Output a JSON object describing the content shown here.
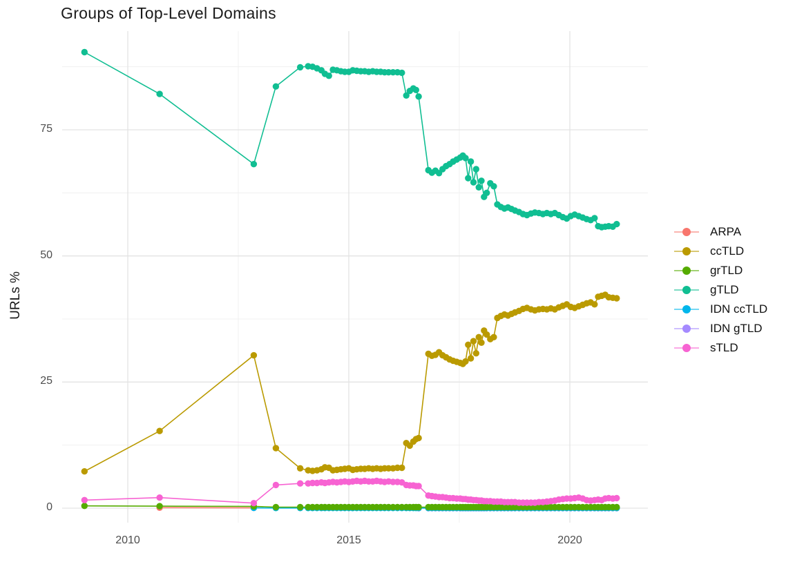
{
  "title": "Groups of Top-Level Domains",
  "colors": {
    "background": "#FFFFFF",
    "grid_major": "#E3E3E3",
    "grid_minor": "#F0F0F0",
    "axis_text": "#4D4D4D",
    "title_text": "#1A1A1A"
  },
  "chart_data": {
    "type": "line",
    "title": "Groups of Top-Level Domains",
    "xlabel": "",
    "ylabel": "URLs %",
    "grid": "on",
    "legend_position": "right",
    "x_ticks": [
      2010,
      2015,
      2020
    ],
    "x_minor": [
      2012.5,
      2017.5
    ],
    "y_ticks": [
      0,
      25,
      50,
      75
    ],
    "y_minor": [
      12.5,
      37.5,
      62.5,
      87.5
    ],
    "x_range": [
      2008.8,
      2021.8
    ],
    "y_range": [
      -3,
      94.5
    ],
    "x": [
      2009.02,
      2010.72,
      2012.85,
      2013.35,
      2013.9,
      2014.08,
      2014.18,
      2014.28,
      2014.38,
      2014.46,
      2014.55,
      2014.64,
      2014.73,
      2014.82,
      2014.91,
      2015.0,
      2015.09,
      2015.18,
      2015.27,
      2015.36,
      2015.45,
      2015.54,
      2015.63,
      2015.72,
      2015.81,
      2015.9,
      2016.0,
      2016.1,
      2016.2,
      2016.3,
      2016.38,
      2016.46,
      2016.52,
      2016.58,
      2016.8,
      2016.88,
      2016.96,
      2017.04,
      2017.12,
      2017.2,
      2017.28,
      2017.36,
      2017.44,
      2017.52,
      2017.58,
      2017.64,
      2017.7,
      2017.76,
      2017.82,
      2017.88,
      2017.94,
      2018.0,
      2018.06,
      2018.12,
      2018.2,
      2018.28,
      2018.36,
      2018.44,
      2018.52,
      2018.6,
      2018.68,
      2018.76,
      2018.85,
      2018.94,
      2019.03,
      2019.12,
      2019.21,
      2019.3,
      2019.39,
      2019.48,
      2019.57,
      2019.66,
      2019.75,
      2019.84,
      2019.93,
      2020.02,
      2020.11,
      2020.2,
      2020.29,
      2020.38,
      2020.47,
      2020.56,
      2020.64,
      2020.72,
      2020.8,
      2020.88,
      2020.97,
      2021.06
    ],
    "series": [
      {
        "name": "ARPA",
        "color": "#F8766D",
        "x": [
          2010.72,
          2012.85
        ],
        "values": [
          0.1,
          0.05
        ]
      },
      {
        "name": "ccTLD",
        "color": "#BA9A00",
        "start_index": 0,
        "values": [
          7.3,
          15.3,
          30.3,
          11.9,
          7.9,
          7.5,
          7.4,
          7.5,
          7.7,
          8.1,
          8.0,
          7.5,
          7.6,
          7.7,
          7.8,
          7.9,
          7.6,
          7.7,
          7.8,
          7.8,
          7.9,
          7.8,
          7.9,
          7.8,
          7.9,
          7.9,
          7.9,
          8.0,
          8.0,
          12.9,
          12.4,
          13.2,
          13.7,
          13.9,
          30.6,
          30.2,
          30.4,
          30.9,
          30.3,
          29.9,
          29.5,
          29.2,
          29.0,
          28.8,
          28.6,
          29.1,
          32.4,
          29.7,
          33.1,
          30.7,
          33.9,
          32.8,
          35.2,
          34.4,
          33.5,
          33.9,
          37.7,
          38.1,
          38.4,
          38.2,
          38.5,
          38.8,
          39.1,
          39.5,
          39.7,
          39.4,
          39.2,
          39.4,
          39.5,
          39.4,
          39.6,
          39.4,
          39.8,
          40.1,
          40.4,
          39.9,
          39.7,
          40.0,
          40.3,
          40.6,
          40.8,
          40.4,
          41.9,
          42.1,
          42.3,
          41.8,
          41.7,
          41.6
        ]
      },
      {
        "name": "grTLD",
        "color": "#55AB00",
        "start_index": 0,
        "values_head": [
          0.45,
          0.4,
          0.35,
          0.2,
          0.2
        ],
        "fill_value": 0.2
      },
      {
        "name": "gTLD",
        "color": "#10BE92",
        "start_index": 0,
        "values": [
          90.4,
          82.1,
          68.2,
          83.6,
          87.4,
          87.6,
          87.5,
          87.2,
          86.8,
          86.1,
          85.7,
          86.9,
          86.8,
          86.6,
          86.5,
          86.5,
          86.8,
          86.7,
          86.6,
          86.6,
          86.5,
          86.6,
          86.5,
          86.5,
          86.4,
          86.4,
          86.4,
          86.4,
          86.3,
          81.8,
          82.7,
          83.2,
          82.9,
          81.6,
          67.0,
          66.5,
          66.9,
          66.4,
          67.2,
          67.8,
          68.2,
          68.7,
          69.1,
          69.5,
          69.9,
          69.4,
          65.4,
          68.7,
          64.6,
          67.2,
          63.6,
          64.9,
          61.7,
          62.5,
          64.4,
          63.8,
          60.2,
          59.7,
          59.4,
          59.6,
          59.3,
          59.0,
          58.7,
          58.3,
          58.1,
          58.4,
          58.6,
          58.5,
          58.3,
          58.5,
          58.3,
          58.5,
          58.1,
          57.7,
          57.4,
          57.9,
          58.2,
          57.9,
          57.6,
          57.3,
          57.1,
          57.5,
          55.9,
          55.7,
          55.8,
          55.9,
          55.8,
          56.3
        ]
      },
      {
        "name": "IDN ccTLD",
        "color": "#00B6EB",
        "start_index": 2,
        "values_head": [
          0.05
        ],
        "fill_value": 0.03
      },
      {
        "name": "IDN gTLD",
        "color": "#A58AFF",
        "start_index": 33,
        "values_head": [],
        "fill_value": 0.01
      },
      {
        "name": "sTLD",
        "color": "#F763D2",
        "start_index": 0,
        "values": [
          1.6,
          2.1,
          1.0,
          4.6,
          4.9,
          4.9,
          5.0,
          5.0,
          5.1,
          5.0,
          5.1,
          5.2,
          5.1,
          5.2,
          5.3,
          5.2,
          5.3,
          5.4,
          5.3,
          5.4,
          5.3,
          5.3,
          5.4,
          5.3,
          5.2,
          5.3,
          5.2,
          5.2,
          5.1,
          4.6,
          4.5,
          4.5,
          4.4,
          4.4,
          2.5,
          2.4,
          2.3,
          2.2,
          2.2,
          2.1,
          2.0,
          2.0,
          1.9,
          1.9,
          1.8,
          1.8,
          1.7,
          1.7,
          1.6,
          1.6,
          1.5,
          1.5,
          1.4,
          1.4,
          1.4,
          1.3,
          1.3,
          1.3,
          1.2,
          1.2,
          1.2,
          1.2,
          1.1,
          1.1,
          1.1,
          1.1,
          1.1,
          1.2,
          1.2,
          1.3,
          1.4,
          1.5,
          1.7,
          1.8,
          1.9,
          1.9,
          2.0,
          2.1,
          1.9,
          1.6,
          1.5,
          1.6,
          1.7,
          1.6,
          1.9,
          2.0,
          1.9,
          2.0
        ]
      }
    ]
  }
}
